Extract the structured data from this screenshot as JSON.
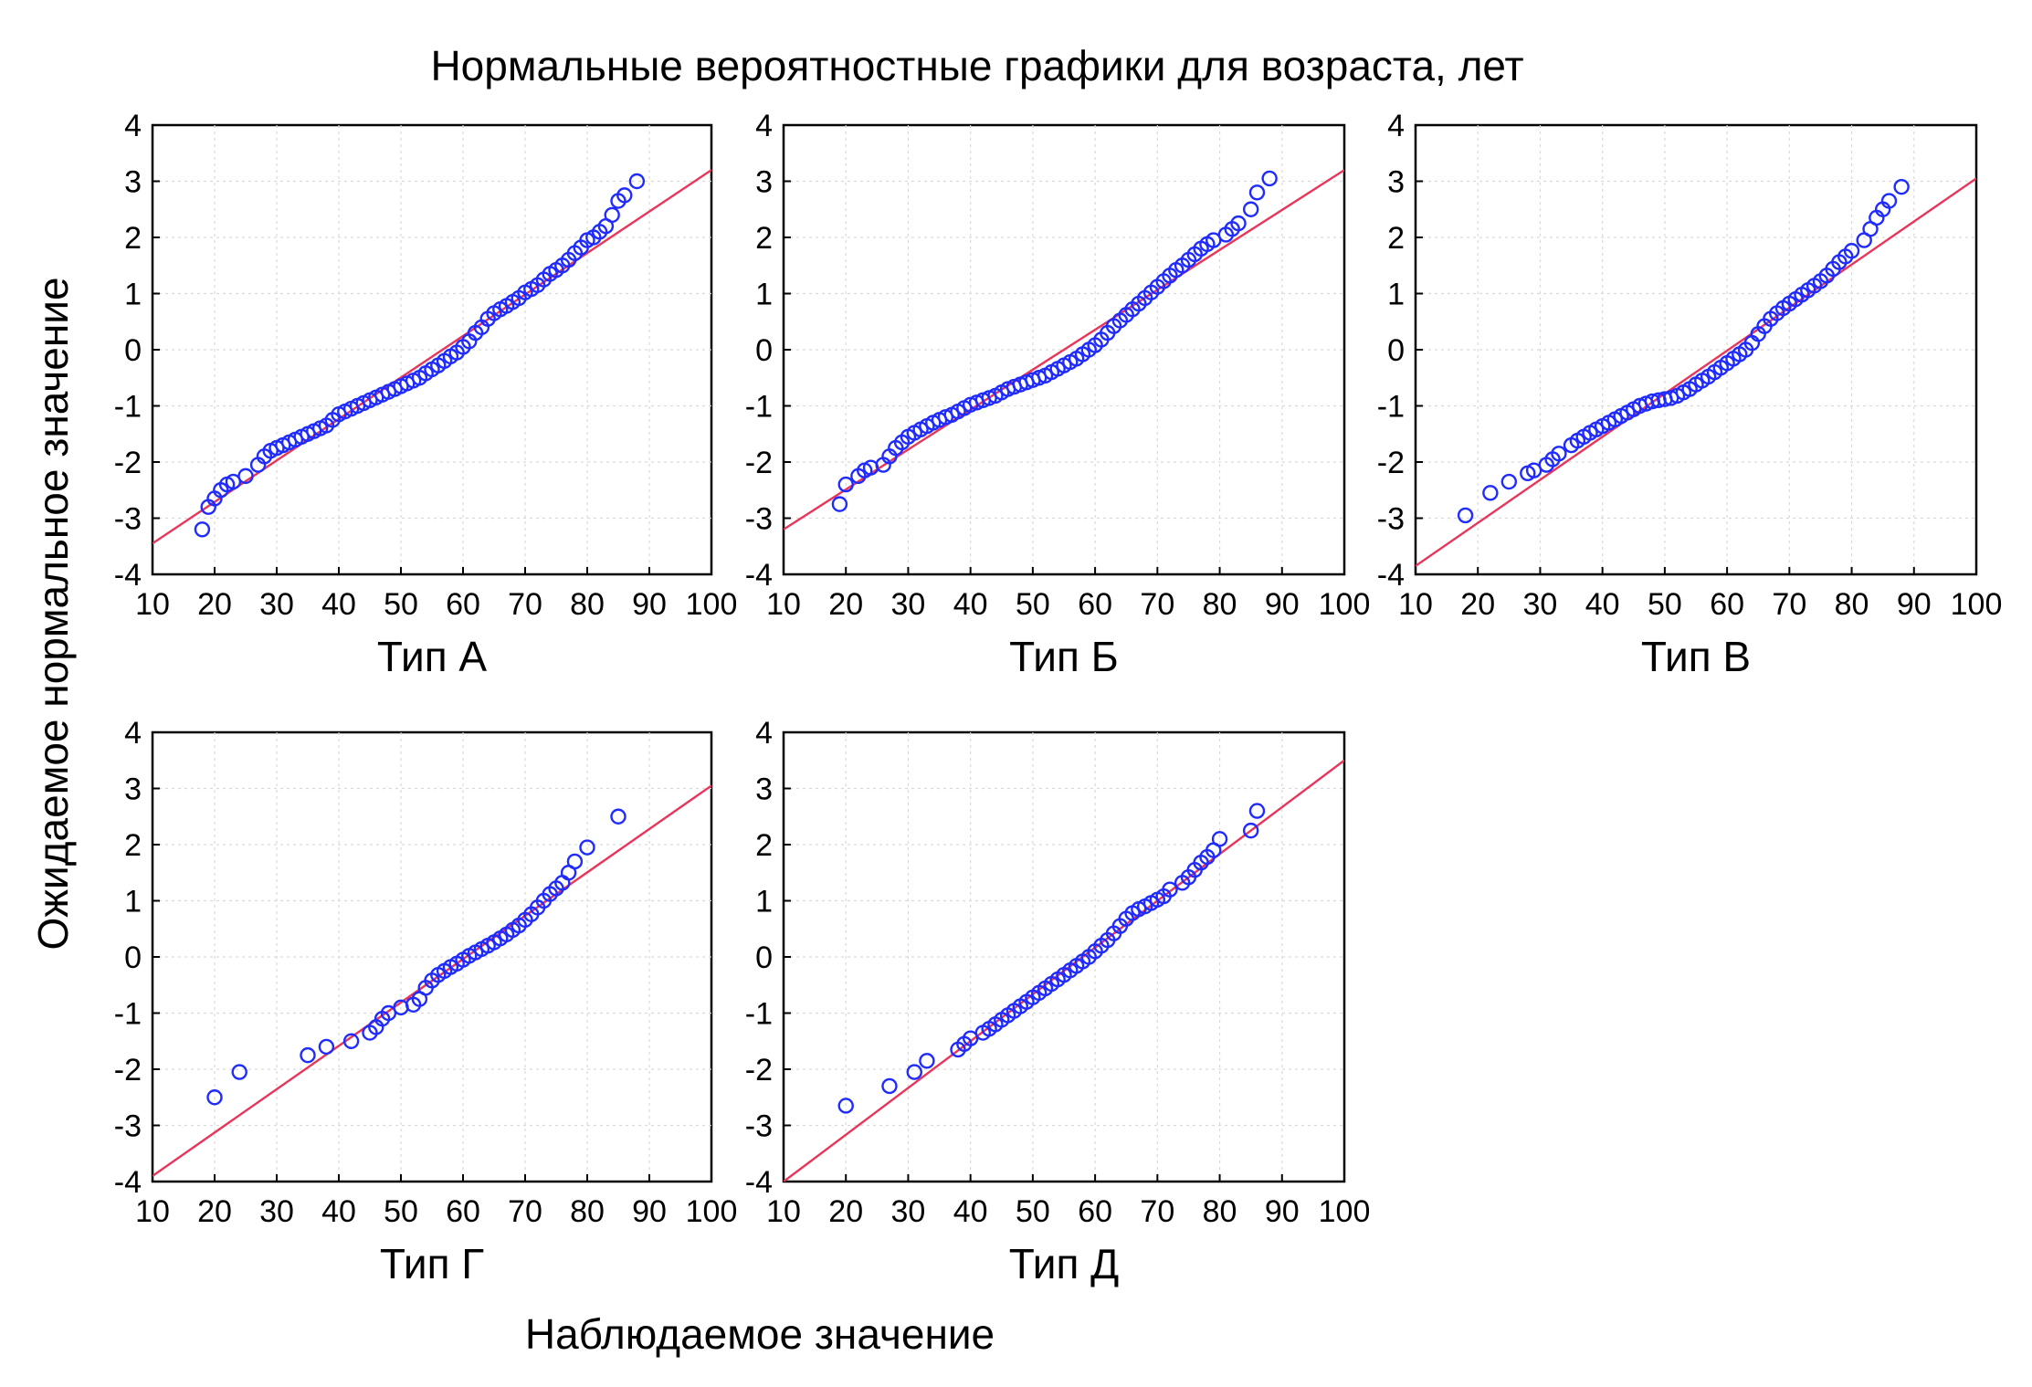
{
  "title": "Нормальные вероятностные графики для возраста, лет",
  "ylabel": "Ожидаемое нормальное значение",
  "xlabel": "Наблюдаемое значение",
  "colors": {
    "points": "#1f2bff",
    "fit_line": "#e8355a",
    "grid": "#d9d9d9"
  },
  "chart_data": [
    {
      "type": "scatter",
      "title": "Тип А",
      "xlim": [
        10,
        100
      ],
      "ylim": [
        -4,
        4
      ],
      "xticks": [
        10,
        20,
        30,
        40,
        50,
        60,
        70,
        80,
        90,
        100
      ],
      "yticks": [
        4,
        3,
        2,
        1,
        0,
        -1,
        -2,
        -3,
        -4
      ],
      "grid": true,
      "fit_line": {
        "x": [
          10,
          100
        ],
        "y": [
          -3.45,
          3.2
        ]
      },
      "x": [
        18,
        19,
        20,
        21,
        22,
        23,
        25,
        27,
        28,
        29,
        30,
        31,
        32,
        33,
        34,
        35,
        36,
        37,
        38,
        39,
        40,
        41,
        42,
        43,
        44,
        45,
        46,
        47,
        48,
        49,
        50,
        51,
        52,
        53,
        54,
        55,
        56,
        57,
        58,
        59,
        60,
        61,
        62,
        63,
        64,
        65,
        66,
        67,
        68,
        69,
        70,
        71,
        72,
        73,
        74,
        75,
        76,
        77,
        78,
        79,
        80,
        81,
        82,
        83,
        84,
        85,
        86,
        88
      ],
      "y": [
        -3.2,
        -2.8,
        -2.65,
        -2.5,
        -2.4,
        -2.35,
        -2.25,
        -2.05,
        -1.9,
        -1.8,
        -1.75,
        -1.7,
        -1.65,
        -1.6,
        -1.55,
        -1.5,
        -1.45,
        -1.4,
        -1.35,
        -1.25,
        -1.15,
        -1.1,
        -1.05,
        -1.0,
        -0.95,
        -0.9,
        -0.85,
        -0.8,
        -0.75,
        -0.7,
        -0.65,
        -0.6,
        -0.55,
        -0.5,
        -0.42,
        -0.35,
        -0.28,
        -0.2,
        -0.12,
        -0.05,
        0.05,
        0.15,
        0.3,
        0.4,
        0.55,
        0.65,
        0.72,
        0.78,
        0.85,
        0.92,
        1.02,
        1.08,
        1.15,
        1.25,
        1.35,
        1.42,
        1.5,
        1.6,
        1.72,
        1.82,
        1.95,
        2.0,
        2.1,
        2.2,
        2.4,
        2.65,
        2.75,
        3.0
      ]
    },
    {
      "type": "scatter",
      "title": "Тип Б",
      "xlim": [
        10,
        100
      ],
      "ylim": [
        -4,
        4
      ],
      "xticks": [
        10,
        20,
        30,
        40,
        50,
        60,
        70,
        80,
        90,
        100
      ],
      "yticks": [
        4,
        3,
        2,
        1,
        0,
        -1,
        -2,
        -3,
        -4
      ],
      "grid": true,
      "fit_line": {
        "x": [
          10,
          100
        ],
        "y": [
          -3.2,
          3.2
        ]
      },
      "x": [
        19,
        20,
        22,
        23,
        24,
        26,
        27,
        28,
        29,
        30,
        31,
        32,
        33,
        34,
        35,
        36,
        37,
        38,
        39,
        40,
        41,
        42,
        43,
        44,
        45,
        46,
        47,
        48,
        49,
        50,
        51,
        52,
        53,
        54,
        55,
        56,
        57,
        58,
        59,
        60,
        61,
        62,
        63,
        64,
        65,
        66,
        67,
        68,
        69,
        70,
        71,
        72,
        73,
        74,
        75,
        76,
        77,
        78,
        79,
        81,
        82,
        83,
        85,
        86,
        88
      ],
      "y": [
        -2.75,
        -2.4,
        -2.25,
        -2.15,
        -2.1,
        -2.05,
        -1.9,
        -1.75,
        -1.65,
        -1.55,
        -1.48,
        -1.42,
        -1.36,
        -1.3,
        -1.25,
        -1.2,
        -1.16,
        -1.1,
        -1.04,
        -0.98,
        -0.94,
        -0.9,
        -0.86,
        -0.82,
        -0.76,
        -0.7,
        -0.66,
        -0.62,
        -0.58,
        -0.54,
        -0.5,
        -0.46,
        -0.4,
        -0.34,
        -0.28,
        -0.22,
        -0.16,
        -0.08,
        0.0,
        0.08,
        0.18,
        0.3,
        0.42,
        0.52,
        0.62,
        0.72,
        0.82,
        0.92,
        1.02,
        1.12,
        1.22,
        1.32,
        1.42,
        1.5,
        1.6,
        1.7,
        1.8,
        1.88,
        1.95,
        2.05,
        2.15,
        2.25,
        2.5,
        2.8,
        3.05
      ]
    },
    {
      "type": "scatter",
      "title": "Тип В",
      "xlim": [
        10,
        100
      ],
      "ylim": [
        -4,
        4
      ],
      "xticks": [
        10,
        20,
        30,
        40,
        50,
        60,
        70,
        80,
        90,
        100
      ],
      "yticks": [
        4,
        3,
        2,
        1,
        0,
        -1,
        -2,
        -3,
        -4
      ],
      "grid": true,
      "fit_line": {
        "x": [
          10,
          100
        ],
        "y": [
          -3.85,
          3.05
        ]
      },
      "x": [
        18,
        22,
        25,
        28,
        29,
        31,
        32,
        33,
        35,
        36,
        37,
        38,
        39,
        40,
        41,
        42,
        43,
        44,
        45,
        46,
        47,
        48,
        49,
        50,
        51,
        52,
        53,
        54,
        55,
        56,
        57,
        58,
        59,
        60,
        61,
        62,
        63,
        64,
        65,
        66,
        67,
        68,
        69,
        70,
        71,
        72,
        73,
        74,
        75,
        76,
        77,
        78,
        79,
        80,
        82,
        83,
        84,
        85,
        86,
        88
      ],
      "y": [
        -2.95,
        -2.55,
        -2.35,
        -2.2,
        -2.15,
        -2.05,
        -1.95,
        -1.85,
        -1.7,
        -1.62,
        -1.55,
        -1.48,
        -1.42,
        -1.36,
        -1.3,
        -1.24,
        -1.18,
        -1.12,
        -1.06,
        -1.0,
        -0.96,
        -0.92,
        -0.9,
        -0.88,
        -0.86,
        -0.82,
        -0.76,
        -0.7,
        -0.62,
        -0.55,
        -0.48,
        -0.4,
        -0.32,
        -0.24,
        -0.16,
        -0.08,
        0.0,
        0.12,
        0.28,
        0.42,
        0.55,
        0.65,
        0.74,
        0.82,
        0.9,
        0.98,
        1.06,
        1.14,
        1.22,
        1.32,
        1.44,
        1.56,
        1.66,
        1.76,
        1.95,
        2.15,
        2.35,
        2.5,
        2.65,
        2.9
      ]
    },
    {
      "type": "scatter",
      "title": "Тип Г",
      "xlim": [
        10,
        100
      ],
      "ylim": [
        -4,
        4
      ],
      "xticks": [
        10,
        20,
        30,
        40,
        50,
        60,
        70,
        80,
        90,
        100
      ],
      "yticks": [
        4,
        3,
        2,
        1,
        0,
        -1,
        -2,
        -3,
        -4
      ],
      "grid": true,
      "fit_line": {
        "x": [
          10,
          100
        ],
        "y": [
          -3.9,
          3.05
        ]
      },
      "x": [
        20,
        24,
        35,
        38,
        42,
        45,
        46,
        47,
        48,
        50,
        52,
        53,
        54,
        55,
        56,
        57,
        58,
        59,
        60,
        61,
        62,
        63,
        64,
        65,
        66,
        67,
        68,
        69,
        70,
        71,
        72,
        73,
        74,
        75,
        76,
        77,
        78,
        80,
        85
      ],
      "y": [
        -2.5,
        -2.05,
        -1.75,
        -1.6,
        -1.5,
        -1.35,
        -1.25,
        -1.1,
        -1.0,
        -0.9,
        -0.85,
        -0.75,
        -0.55,
        -0.42,
        -0.32,
        -0.25,
        -0.18,
        -0.12,
        -0.05,
        0.02,
        0.08,
        0.14,
        0.2,
        0.26,
        0.33,
        0.4,
        0.48,
        0.56,
        0.66,
        0.76,
        0.88,
        1.0,
        1.12,
        1.22,
        1.32,
        1.5,
        1.7,
        1.95,
        2.5
      ]
    },
    {
      "type": "scatter",
      "title": "Тип Д",
      "xlim": [
        10,
        100
      ],
      "ylim": [
        -4,
        4
      ],
      "xticks": [
        10,
        20,
        30,
        40,
        50,
        60,
        70,
        80,
        90,
        100
      ],
      "yticks": [
        4,
        3,
        2,
        1,
        0,
        -1,
        -2,
        -3,
        -4
      ],
      "grid": true,
      "fit_line": {
        "x": [
          10,
          100
        ],
        "y": [
          -4.0,
          3.5
        ]
      },
      "x": [
        20,
        27,
        31,
        33,
        38,
        39,
        40,
        42,
        43,
        44,
        45,
        46,
        47,
        48,
        49,
        50,
        51,
        52,
        53,
        54,
        55,
        56,
        57,
        58,
        59,
        60,
        61,
        62,
        63,
        64,
        65,
        66,
        67,
        68,
        69,
        70,
        71,
        72,
        74,
        75,
        76,
        77,
        78,
        79,
        80,
        85,
        86
      ],
      "y": [
        -2.65,
        -2.3,
        -2.05,
        -1.85,
        -1.65,
        -1.55,
        -1.45,
        -1.35,
        -1.28,
        -1.2,
        -1.12,
        -1.04,
        -0.96,
        -0.88,
        -0.8,
        -0.72,
        -0.64,
        -0.56,
        -0.48,
        -0.4,
        -0.32,
        -0.24,
        -0.16,
        -0.08,
        0.0,
        0.1,
        0.2,
        0.3,
        0.42,
        0.55,
        0.68,
        0.78,
        0.85,
        0.9,
        0.96,
        1.02,
        1.08,
        1.2,
        1.32,
        1.42,
        1.55,
        1.68,
        1.78,
        1.9,
        2.1,
        2.25,
        2.6
      ]
    }
  ]
}
